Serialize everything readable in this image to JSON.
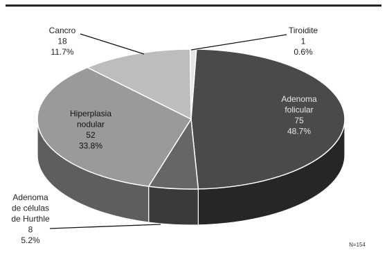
{
  "chart_data": {
    "type": "pie",
    "three_d": true,
    "categories": [
      "Adenoma folicular",
      "Adenoma de células de Hurthle",
      "Hiperplasia nodular",
      "Cancro",
      "Tiroidite"
    ],
    "values": [
      75,
      8,
      52,
      18,
      1
    ],
    "percent_labels": [
      "48.7%",
      "5.2%",
      "33.8%",
      "11.7%",
      "0.6%"
    ],
    "label_lines": [
      [
        "Adenoma",
        "folicular"
      ],
      [
        "Adenoma",
        "de células",
        "de Hurthle"
      ],
      [
        "Hiperplasia",
        "nodular"
      ],
      [
        "Cancro"
      ],
      [
        "Tiroidite"
      ]
    ],
    "colors": {
      "top": [
        "#4a4a4a",
        "#666666",
        "#9a9a9a",
        "#bdbdbd",
        "#e6e6e6"
      ],
      "side": [
        "#262626",
        "#3a3a3a",
        "#5e5e5e",
        "#7c7c7c",
        "#a8a8a8"
      ]
    },
    "total_label": "N=154",
    "legend": "none"
  }
}
